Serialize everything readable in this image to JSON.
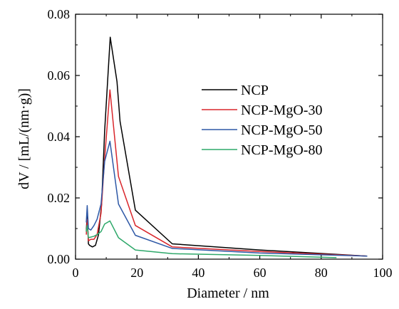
{
  "chart_data": {
    "type": "line",
    "xlabel": "Diameter / nm",
    "ylabel": "dV / [mL/(nm·g)]",
    "xlim": [
      0,
      100
    ],
    "ylim": [
      0,
      0.08
    ],
    "x_ticks": [
      "0",
      "20",
      "40",
      "60",
      "80",
      "100"
    ],
    "y_ticks": [
      "0.00",
      "0.02",
      "0.04",
      "0.06",
      "0.08"
    ],
    "grid": false,
    "legend_position": "top-right",
    "series": [
      {
        "name": "NCP",
        "color": "#000000",
        "points": [
          [
            3.5,
            0.009
          ],
          [
            3.8,
            0.015
          ],
          [
            4.2,
            0.005
          ],
          [
            4.6,
            0.0045
          ],
          [
            5.5,
            0.004
          ],
          [
            6.5,
            0.0045
          ],
          [
            7.5,
            0.008
          ],
          [
            8.5,
            0.018
          ],
          [
            9.5,
            0.042
          ],
          [
            11.3,
            0.0725
          ],
          [
            13.5,
            0.058
          ],
          [
            14.5,
            0.045
          ],
          [
            19.5,
            0.016
          ],
          [
            31.5,
            0.005
          ],
          [
            60,
            0.003
          ],
          [
            95,
            0.001
          ]
        ]
      },
      {
        "name": "NCP-MgO-30",
        "color": "#d9262b",
        "points": [
          [
            3.5,
            0.008
          ],
          [
            3.8,
            0.013
          ],
          [
            4.2,
            0.006
          ],
          [
            5,
            0.0065
          ],
          [
            6,
            0.0065
          ],
          [
            7,
            0.008
          ],
          [
            8.3,
            0.015
          ],
          [
            9.5,
            0.033
          ],
          [
            11.2,
            0.0553
          ],
          [
            14,
            0.027
          ],
          [
            19.5,
            0.011
          ],
          [
            31.5,
            0.004
          ],
          [
            60,
            0.0025
          ],
          [
            95,
            0.001
          ]
        ]
      },
      {
        "name": "NCP-MgO-50",
        "color": "#2e58a6",
        "points": [
          [
            3.5,
            0.012
          ],
          [
            3.8,
            0.0175
          ],
          [
            4.2,
            0.01
          ],
          [
            5,
            0.0095
          ],
          [
            6,
            0.011
          ],
          [
            7,
            0.013
          ],
          [
            8.3,
            0.018
          ],
          [
            9.5,
            0.032
          ],
          [
            11.2,
            0.0385
          ],
          [
            14,
            0.018
          ],
          [
            19.5,
            0.0078
          ],
          [
            31.5,
            0.0035
          ],
          [
            60,
            0.002
          ],
          [
            95,
            0.001
          ]
        ]
      },
      {
        "name": "NCP-MgO-80",
        "color": "#2ea86a",
        "points": [
          [
            3.5,
            0.009
          ],
          [
            3.8,
            0.011
          ],
          [
            4.2,
            0.007
          ],
          [
            5,
            0.0072
          ],
          [
            6,
            0.0075
          ],
          [
            7,
            0.008
          ],
          [
            8.3,
            0.009
          ],
          [
            9.5,
            0.0115
          ],
          [
            11.2,
            0.0125
          ],
          [
            14,
            0.007
          ],
          [
            19.5,
            0.003
          ],
          [
            31.5,
            0.0018
          ],
          [
            60,
            0.0012
          ],
          [
            85,
            0.0005
          ]
        ]
      }
    ]
  }
}
